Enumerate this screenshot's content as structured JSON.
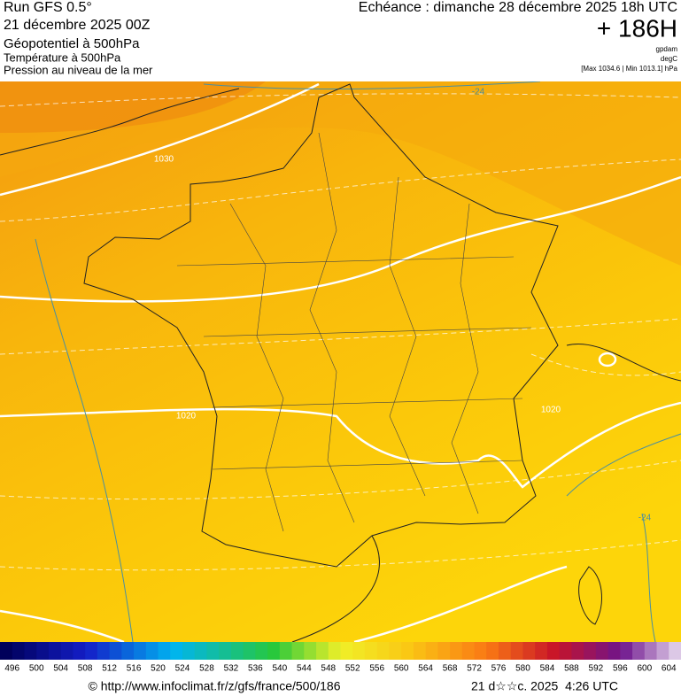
{
  "header": {
    "left": [
      "Run GFS 0.5°",
      "21 décembre 2025 00Z",
      "Géopotentiel à 500hPa",
      "Température à 500hPa",
      "Pression au niveau de la mer"
    ],
    "right": {
      "echeance": "Echéance : dimanche 28 décembre 2025 18h UTC",
      "hour": "+ 186H",
      "units": [
        "gpdam",
        "degC"
      ],
      "range": "[Max 1034.6 | Min 1013.1] hPa"
    }
  },
  "map": {
    "labels": [
      "-24",
      "1030",
      "1020",
      "1020",
      "-24"
    ]
  },
  "legend": {
    "labels": [
      496,
      500,
      504,
      508,
      512,
      516,
      520,
      524,
      528,
      532,
      536,
      540,
      544,
      548,
      552,
      556,
      560,
      564,
      568,
      572,
      576,
      580,
      584,
      588,
      592,
      596,
      600,
      604
    ]
  },
  "footer": {
    "url": "© http://www.infoclimat.fr/z/gfs/france/500/186",
    "date": "21 d☆☆c. 2025  4:26 UTC"
  }
}
